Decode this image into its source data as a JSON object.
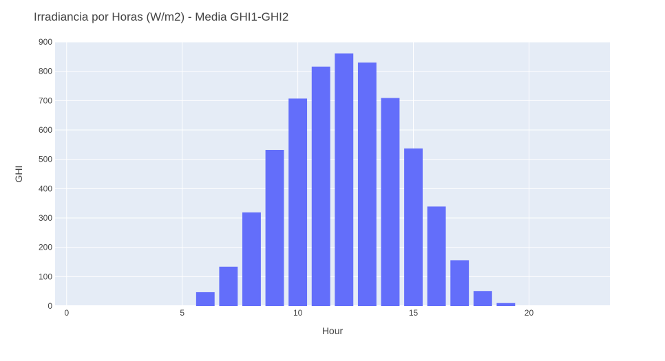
{
  "chart_data": {
    "type": "bar",
    "title": "Irradiancia por Horas (W/m2) - Media GHI1-GHI2",
    "xlabel": "Hour",
    "ylabel": "GHI",
    "x": [
      0,
      1,
      2,
      3,
      4,
      5,
      6,
      7,
      8,
      9,
      10,
      11,
      12,
      13,
      14,
      15,
      16,
      17,
      18,
      19,
      20,
      21,
      22,
      23
    ],
    "values": [
      0,
      0,
      0,
      0,
      0,
      0,
      47,
      134,
      319,
      532,
      707,
      816,
      861,
      830,
      709,
      537,
      339,
      156,
      51,
      10,
      0,
      0,
      0,
      0
    ],
    "xlim": [
      -0.5,
      23.5
    ],
    "ylim": [
      0,
      900
    ],
    "xticks": [
      0,
      5,
      10,
      15,
      20
    ],
    "yticks": [
      0,
      100,
      200,
      300,
      400,
      500,
      600,
      700,
      800,
      900
    ],
    "grid": true,
    "colors": {
      "bar": "#636efa",
      "plot_bg": "#e5ecf6",
      "grid": "#ffffff",
      "text": "#444444"
    }
  }
}
